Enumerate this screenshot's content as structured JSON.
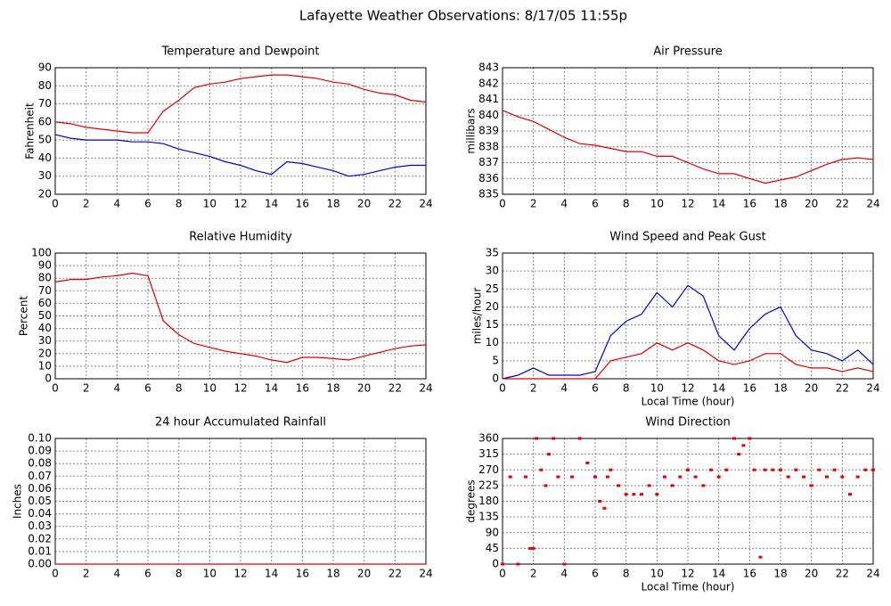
{
  "title": "Lafayette Weather Observations: 8/17/05 11:55p",
  "chart_data": [
    {
      "type": "line",
      "title": "Temperature and Dewpoint",
      "y_label": "Fahrenheit",
      "x": [
        0,
        1,
        2,
        3,
        4,
        5,
        6,
        7,
        8,
        9,
        10,
        11,
        12,
        13,
        14,
        15,
        16,
        17,
        18,
        19,
        20,
        21,
        22,
        23,
        24
      ],
      "series": [
        {
          "color": "#e00000",
          "values": [
            60,
            59,
            57,
            56,
            55,
            54,
            54,
            66,
            72,
            79,
            81,
            82,
            84,
            85,
            86,
            86,
            85,
            84,
            82,
            81,
            78,
            76,
            75,
            72,
            71
          ]
        },
        {
          "color": "#0000c8",
          "values": [
            53,
            51,
            50,
            50,
            50,
            49,
            49,
            48,
            45,
            43,
            41,
            38,
            36,
            33,
            31,
            38,
            37,
            35,
            33,
            30,
            31,
            33,
            35,
            36,
            36
          ]
        }
      ],
      "xlim": [
        0,
        24
      ],
      "xticks": [
        0,
        2,
        4,
        6,
        8,
        10,
        12,
        14,
        16,
        18,
        20,
        22,
        24
      ],
      "ylim": [
        20,
        90
      ],
      "yticks": [
        20,
        30,
        40,
        50,
        60,
        70,
        80,
        90
      ],
      "grid": true
    },
    {
      "type": "line",
      "title": "Air Pressure",
      "y_label": "millibars",
      "x": [
        0,
        1,
        2,
        3,
        4,
        5,
        6,
        7,
        8,
        9,
        10,
        11,
        12,
        13,
        14,
        15,
        16,
        17,
        18,
        19,
        20,
        21,
        22,
        23,
        24
      ],
      "series": [
        {
          "color": "#e00000",
          "values": [
            840.3,
            839.9,
            839.6,
            839.1,
            838.6,
            838.2,
            838.1,
            837.9,
            837.7,
            837.7,
            837.4,
            837.4,
            837.0,
            836.6,
            836.3,
            836.3,
            836.0,
            835.7,
            835.9,
            836.1,
            836.5,
            836.9,
            837.2,
            837.3,
            837.2
          ]
        }
      ],
      "xlim": [
        0,
        24
      ],
      "xticks": [
        0,
        2,
        4,
        6,
        8,
        10,
        12,
        14,
        16,
        18,
        20,
        22,
        24
      ],
      "ylim": [
        835,
        843
      ],
      "yticks": [
        835,
        836,
        837,
        838,
        839,
        840,
        841,
        842,
        843
      ],
      "grid": true
    },
    {
      "type": "line",
      "title": "Relative Humidity",
      "y_label": "Percent",
      "x": [
        0,
        1,
        2,
        3,
        4,
        5,
        6,
        7,
        8,
        9,
        10,
        11,
        12,
        13,
        14,
        15,
        16,
        17,
        18,
        19,
        20,
        21,
        22,
        23,
        24
      ],
      "series": [
        {
          "color": "#e00000",
          "values": [
            77,
            79,
            79,
            81,
            82,
            84,
            82,
            46,
            35,
            28,
            25,
            22,
            20,
            18,
            15,
            13,
            17,
            17,
            16,
            15,
            18,
            21,
            24,
            26,
            27
          ]
        }
      ],
      "xlim": [
        0,
        24
      ],
      "xticks": [
        0,
        2,
        4,
        6,
        8,
        10,
        12,
        14,
        16,
        18,
        20,
        22,
        24
      ],
      "ylim": [
        0,
        100
      ],
      "yticks": [
        0,
        10,
        20,
        30,
        40,
        50,
        60,
        70,
        80,
        90,
        100
      ],
      "grid": true
    },
    {
      "type": "line",
      "title": "Wind Speed and Peak Gust",
      "y_label": "miles/hour",
      "x_label": "Local Time (hour)",
      "x": [
        0,
        1,
        2,
        3,
        4,
        5,
        6,
        7,
        8,
        9,
        10,
        11,
        12,
        13,
        14,
        15,
        16,
        17,
        18,
        19,
        20,
        21,
        22,
        23,
        24
      ],
      "series": [
        {
          "color": "#0000c8",
          "values": [
            0,
            1,
            3,
            1,
            1,
            1,
            2,
            12,
            16,
            18,
            24,
            20,
            26,
            23,
            12,
            8,
            14,
            18,
            20,
            12,
            8,
            7,
            5,
            8,
            4
          ]
        },
        {
          "color": "#e00000",
          "values": [
            0,
            0,
            0,
            0,
            0,
            0,
            0,
            5,
            6,
            7,
            10,
            8,
            10,
            8,
            5,
            4,
            5,
            7,
            7,
            4,
            3,
            3,
            2,
            3,
            2
          ]
        }
      ],
      "xlim": [
        0,
        24
      ],
      "xticks": [
        0,
        2,
        4,
        6,
        8,
        10,
        12,
        14,
        16,
        18,
        20,
        22,
        24
      ],
      "ylim": [
        0,
        35
      ],
      "yticks": [
        0,
        5,
        10,
        15,
        20,
        25,
        30,
        35
      ],
      "grid": true
    },
    {
      "type": "line",
      "title": "24 hour Accumulated Rainfall",
      "y_label": "Inches",
      "x": [
        0,
        24
      ],
      "series": [
        {
          "color": "#e00000",
          "values": [
            0,
            0
          ]
        }
      ],
      "xlim": [
        0,
        24
      ],
      "xticks": [
        0,
        2,
        4,
        6,
        8,
        10,
        12,
        14,
        16,
        18,
        20,
        22,
        24
      ],
      "ylim": [
        0,
        0.1
      ],
      "yticks": [
        {
          "value": 0,
          "label": "0.00"
        },
        {
          "value": 0.01,
          "label": "0.01"
        },
        {
          "value": 0.02,
          "label": "0.02"
        },
        {
          "value": 0.03,
          "label": "0.03"
        },
        {
          "value": 0.04,
          "label": "0.04"
        },
        {
          "value": 0.05,
          "label": "0.05"
        },
        {
          "value": 0.06,
          "label": "0.06"
        },
        {
          "value": 0.07,
          "label": "0.07"
        },
        {
          "value": 0.08,
          "label": "0.08"
        },
        {
          "value": 0.09,
          "label": "0.09"
        },
        {
          "value": 0.1,
          "label": "0.10"
        }
      ],
      "grid": true
    },
    {
      "type": "scatter",
      "title": "Wind Direction",
      "y_label": "degrees",
      "x_label": "Local Time (hour)",
      "x": [
        0,
        0.5,
        1,
        1.5,
        1.8,
        2,
        2.2,
        2.5,
        2.8,
        3,
        3.3,
        3.6,
        4,
        4.5,
        5,
        5.5,
        6,
        6.3,
        6.6,
        6.8,
        7,
        7.5,
        8,
        8.5,
        9,
        9.5,
        10,
        10.5,
        11,
        11.5,
        12,
        12.5,
        13,
        13.5,
        14,
        14.5,
        15,
        15.3,
        15.6,
        16,
        16.3,
        16.7,
        17,
        17.5,
        18,
        18.5,
        19,
        19.5,
        20,
        20.5,
        21,
        21.5,
        22,
        22.5,
        23,
        23.5,
        24
      ],
      "series": [
        {
          "color": "#e00000",
          "values": [
            0,
            250,
            0,
            250,
            45,
            45,
            360,
            270,
            225,
            315,
            360,
            250,
            0,
            250,
            360,
            290,
            250,
            180,
            160,
            250,
            270,
            225,
            200,
            200,
            200,
            225,
            200,
            250,
            225,
            250,
            270,
            250,
            225,
            270,
            250,
            270,
            360,
            315,
            340,
            360,
            270,
            20,
            270,
            270,
            270,
            250,
            270,
            250,
            225,
            270,
            250,
            270,
            250,
            200,
            250,
            270,
            270
          ]
        }
      ],
      "xlim": [
        0,
        24
      ],
      "xticks": [
        0,
        2,
        4,
        6,
        8,
        10,
        12,
        14,
        16,
        18,
        20,
        22,
        24
      ],
      "ylim": [
        0,
        360
      ],
      "yticks": [
        0,
        45,
        90,
        135,
        180,
        225,
        270,
        315,
        360
      ],
      "grid": true
    }
  ]
}
